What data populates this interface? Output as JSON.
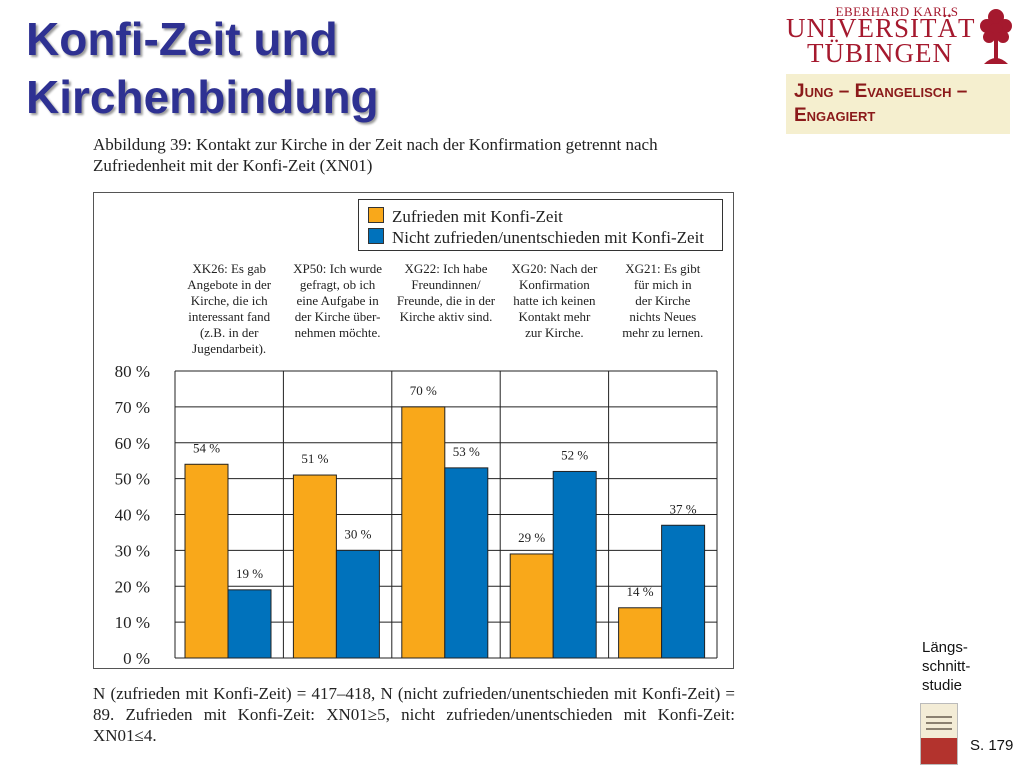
{
  "slide": {
    "title_line1": "Konfi-Zeit und",
    "title_line2": "Kirchenbindung",
    "side_label_lines": [
      "Längs-",
      "schnitt-",
      "studie"
    ],
    "page_ref": "S. 179"
  },
  "university": {
    "top_text": "EBERHARD KARLS",
    "name_line1": "UNIVERSITÄT",
    "name_line2": "TÜBINGEN",
    "color": "#a5192e"
  },
  "study_box": {
    "line1": "Jung – Evangelisch –",
    "line2": "Engagiert"
  },
  "caption": "Abbildung 39: Kontakt zur Kirche in der Zeit nach der Konfirmation getrennt nach Zufriedenheit mit der Konfi-Zeit (XN01)",
  "footnote": "N (zufrieden mit Konfi-Zeit) = 417–418, N (nicht zufrieden/unentschieden mit Konfi-Zeit) = 89. Zufrieden mit Konfi-Zeit: XN01≥5, nicht zufrieden/unentschieden mit Konfi-Zeit: XN01≤4.",
  "chart_data": {
    "type": "bar",
    "categories": [
      [
        "XK26: Es gab",
        "Angebote in der",
        "Kirche, die ich",
        "interessant fand",
        "(z.B. in der",
        "Jugendarbeit)."
      ],
      [
        "XP50: Ich wurde",
        "gefragt, ob ich",
        "eine Aufgabe in",
        "der Kirche über-",
        "nehmen möchte."
      ],
      [
        "XG22: Ich habe",
        "Freundinnen/",
        "Freunde, die in der",
        "Kirche aktiv sind."
      ],
      [
        "XG20: Nach der",
        "Konfirmation",
        "hatte ich keinen",
        "Kontakt mehr",
        "zur Kirche."
      ],
      [
        "XG21: Es gibt",
        "für mich in",
        "der Kirche",
        "nichts Neues",
        "mehr zu lernen."
      ]
    ],
    "series": [
      {
        "name": "Zufrieden mit Konfi-Zeit",
        "color": "#f9a81a",
        "values": [
          54,
          51,
          70,
          29,
          14
        ]
      },
      {
        "name": "Nicht zufrieden/unentschieden mit Konfi-Zeit",
        "color": "#0072bc",
        "values": [
          19,
          30,
          53,
          52,
          37
        ]
      }
    ],
    "value_suffix": " %",
    "yticks": [
      "0 %",
      "10 %",
      "20 %",
      "30 %",
      "40 %",
      "50 %",
      "60 %",
      "70 %",
      "80 %"
    ],
    "ylim": [
      0,
      80
    ],
    "grid": true,
    "legend": "top-right"
  }
}
